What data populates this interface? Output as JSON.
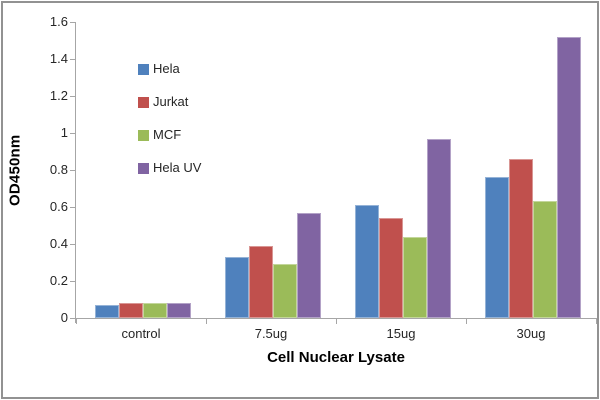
{
  "frame": {
    "border_color": "#929292",
    "background": "#ffffff"
  },
  "chart_data": {
    "type": "bar",
    "title": "",
    "categories": [
      "control",
      "7.5ug",
      "15ug",
      "30ug"
    ],
    "series": [
      {
        "name": "Hela",
        "color": "#4F81BD",
        "values": [
          0.07,
          0.33,
          0.61,
          0.76
        ]
      },
      {
        "name": "Jurkat",
        "color": "#C0504D",
        "values": [
          0.08,
          0.39,
          0.54,
          0.86
        ]
      },
      {
        "name": "MCF",
        "color": "#9BBB59",
        "values": [
          0.08,
          0.29,
          0.44,
          0.63
        ]
      },
      {
        "name": "Hela UV",
        "color": "#8064A2",
        "values": [
          0.08,
          0.57,
          0.97,
          1.52
        ]
      }
    ],
    "xlabel": "Cell Nuclear Lysate",
    "ylabel": "OD450nm",
    "ylim": [
      0,
      1.6
    ],
    "ytick_step": 0.2,
    "ytick_labels": [
      "0",
      "0.2",
      "0.4",
      "0.6",
      "0.8",
      "1",
      "1.2",
      "1.4",
      "1.6"
    ],
    "grid": false,
    "legend_position": "inside-top-left",
    "legend_marker": "square",
    "axis_color": "#A6A6A6",
    "text_color": "#262626"
  }
}
